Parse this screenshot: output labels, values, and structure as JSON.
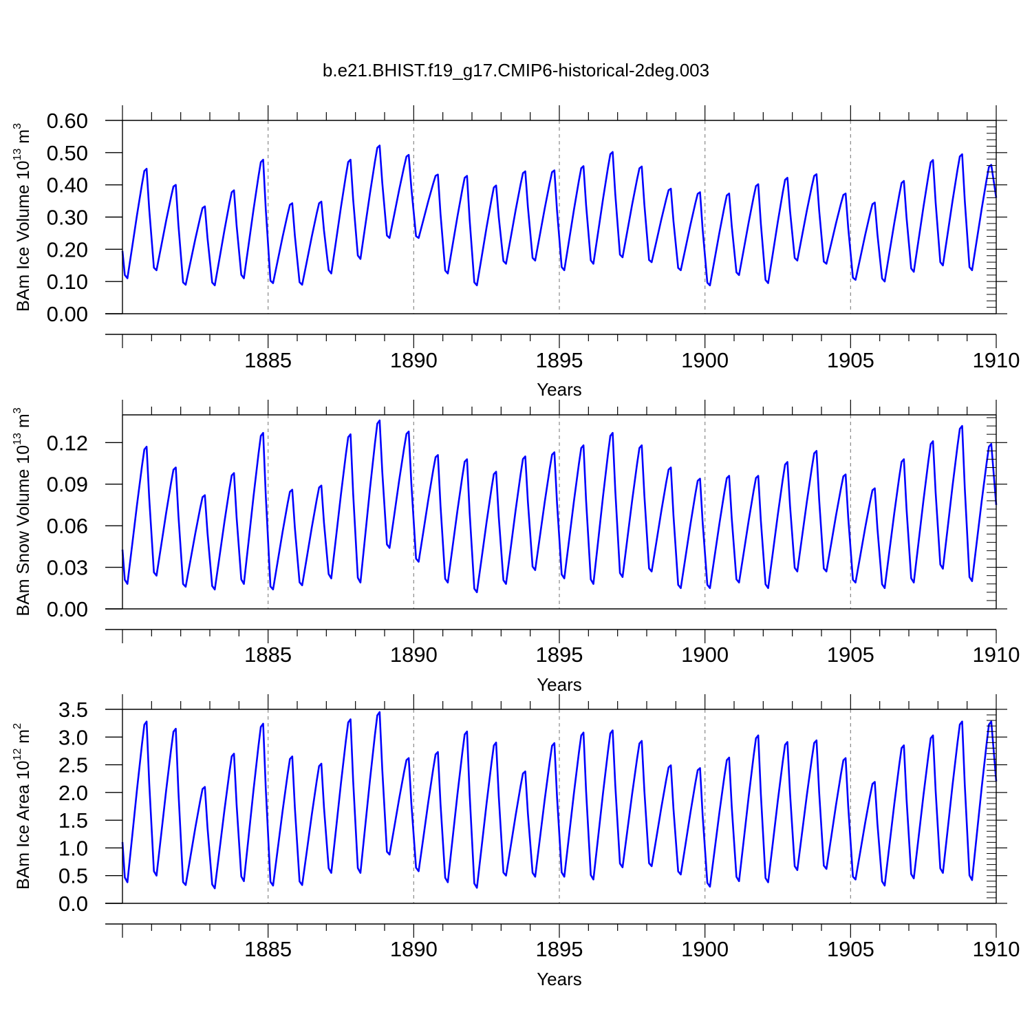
{
  "title": "b.e21.BHIST.f19_g17.CMIP6-historical-2deg.003",
  "colors": {
    "line": "#0000ff",
    "axis": "#000000",
    "grid": "#888888"
  },
  "chart_data": [
    {
      "type": "line",
      "name": "ice-volume",
      "ylabel": {
        "main": "BAm Ice Volume 10",
        "sup": "13",
        "unit": " m",
        "unit_sup": "3"
      },
      "xlabel": "Years",
      "xlim": [
        1880,
        1910
      ],
      "ylim": [
        0,
        0.6
      ],
      "x_ticks": [
        "1885",
        "1890",
        "1895",
        "1900",
        "1905",
        "1910"
      ],
      "y_ticks": [
        "0.00",
        "0.10",
        "0.20",
        "0.30",
        "0.40",
        "0.50",
        "0.60"
      ],
      "x_grid": [
        1885,
        1890,
        1895,
        1900,
        1905
      ],
      "series": [
        {
          "name": "Ice Volume",
          "annual_min": [
            0.11,
            0.135,
            0.09,
            0.088,
            0.11,
            0.095,
            0.09,
            0.125,
            0.17,
            0.235,
            0.235,
            0.125,
            0.088,
            0.155,
            0.165,
            0.135,
            0.155,
            0.175,
            0.16,
            0.135,
            0.088,
            0.12,
            0.095,
            0.165,
            0.155,
            0.105,
            0.1,
            0.13,
            0.15,
            0.135
          ],
          "annual_max": [
            0.45,
            0.4,
            0.333,
            0.383,
            0.478,
            0.343,
            0.348,
            0.478,
            0.522,
            0.493,
            0.432,
            0.428,
            0.398,
            0.442,
            0.445,
            0.458,
            0.502,
            0.457,
            0.388,
            0.377,
            0.373,
            0.402,
            0.422,
            0.433,
            0.373,
            0.345,
            0.412,
            0.477,
            0.495,
            0.462
          ],
          "end": 0.36
        }
      ]
    },
    {
      "type": "line",
      "name": "snow-volume",
      "ylabel": {
        "main": "BAm Snow Volume 10",
        "sup": "13",
        "unit": " m",
        "unit_sup": "3"
      },
      "xlabel": "Years",
      "xlim": [
        1880,
        1910
      ],
      "ylim": [
        0,
        0.14
      ],
      "x_ticks": [
        "1885",
        "1890",
        "1895",
        "1900",
        "1905",
        "1910"
      ],
      "y_ticks": [
        "0.00",
        "0.03",
        "0.06",
        "0.09",
        "0.12"
      ],
      "y_tick_values": [
        0,
        0.03,
        0.06,
        0.09,
        0.12
      ],
      "x_grid": [
        1885,
        1890,
        1895,
        1900,
        1905
      ],
      "series": [
        {
          "name": "Snow Volume",
          "annual_min": [
            0.018,
            0.024,
            0.016,
            0.014,
            0.018,
            0.014,
            0.017,
            0.022,
            0.019,
            0.044,
            0.034,
            0.019,
            0.012,
            0.018,
            0.028,
            0.022,
            0.018,
            0.023,
            0.027,
            0.015,
            0.015,
            0.019,
            0.015,
            0.027,
            0.027,
            0.019,
            0.015,
            0.019,
            0.029,
            0.02
          ],
          "annual_max": [
            0.117,
            0.102,
            0.082,
            0.098,
            0.127,
            0.086,
            0.089,
            0.126,
            0.136,
            0.128,
            0.111,
            0.108,
            0.099,
            0.11,
            0.113,
            0.118,
            0.127,
            0.118,
            0.102,
            0.094,
            0.096,
            0.096,
            0.106,
            0.114,
            0.097,
            0.087,
            0.108,
            0.121,
            0.132,
            0.119
          ],
          "end": 0.075
        }
      ]
    },
    {
      "type": "line",
      "name": "ice-area",
      "ylabel": {
        "main": "BAm Ice Area 10",
        "sup": "12",
        "unit": " m",
        "unit_sup": "2"
      },
      "xlabel": "Years",
      "xlim": [
        1880,
        1910
      ],
      "ylim": [
        0,
        3.5
      ],
      "x_ticks": [
        "1885",
        "1890",
        "1895",
        "1900",
        "1905",
        "1910"
      ],
      "y_ticks": [
        "0.0",
        "0.5",
        "1.0",
        "1.5",
        "2.0",
        "2.5",
        "3.0",
        "3.5"
      ],
      "x_grid": [
        1885,
        1890,
        1895,
        1900,
        1905
      ],
      "series": [
        {
          "name": "Ice Area",
          "annual_min": [
            0.38,
            0.5,
            0.33,
            0.27,
            0.4,
            0.32,
            0.33,
            0.55,
            0.55,
            0.88,
            0.58,
            0.38,
            0.28,
            0.5,
            0.48,
            0.48,
            0.43,
            0.65,
            0.67,
            0.52,
            0.3,
            0.4,
            0.38,
            0.6,
            0.62,
            0.43,
            0.32,
            0.45,
            0.55,
            0.42
          ],
          "annual_max": [
            3.28,
            3.15,
            2.1,
            2.7,
            3.24,
            2.65,
            2.52,
            3.32,
            3.45,
            2.62,
            2.73,
            3.1,
            2.9,
            2.38,
            2.89,
            3.08,
            3.12,
            2.93,
            2.49,
            2.44,
            2.63,
            3.03,
            2.91,
            2.94,
            2.62,
            2.19,
            2.85,
            3.03,
            3.28,
            3.28
          ],
          "end": 2.2
        }
      ]
    }
  ]
}
